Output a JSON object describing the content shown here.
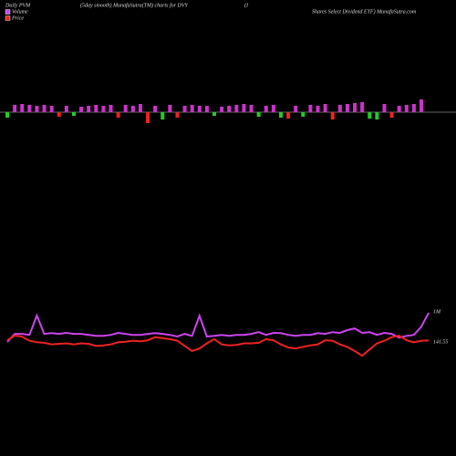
{
  "chart_data": {
    "type": "pvm",
    "title": "Daily PVM",
    "subtitle": "(5day smooth) MunafaSutra(TM) charts for DVY",
    "title_part": "(I",
    "title_right": "Shares Select Dividend ETF) MunafaSutra.com",
    "bars": {
      "values": [
        -6,
        8,
        9,
        8,
        7,
        8,
        7,
        -5,
        7,
        -4,
        6,
        7,
        8,
        7,
        8,
        -6,
        8,
        7,
        9,
        -12,
        7,
        -8,
        8,
        -6,
        7,
        8,
        7,
        7,
        -4,
        6,
        7,
        8,
        9,
        8,
        -5,
        7,
        8,
        -6,
        -7,
        7,
        -5,
        8,
        7,
        9,
        -8,
        8,
        9,
        10,
        11,
        -7,
        -8,
        9,
        -6,
        7,
        8,
        9,
        14
      ],
      "colors": [
        "#22cc22",
        "#cc33cc",
        "#cc33cc",
        "#cc33cc",
        "#cc33cc",
        "#cc33cc",
        "#cc33cc",
        "#ee2222",
        "#cc33cc",
        "#22cc22",
        "#cc33cc",
        "#cc33cc",
        "#cc33cc",
        "#cc33cc",
        "#cc33cc",
        "#ee2222",
        "#cc33cc",
        "#cc33cc",
        "#cc33cc",
        "#ee2222",
        "#cc33cc",
        "#22cc22",
        "#cc33cc",
        "#ee2222",
        "#cc33cc",
        "#cc33cc",
        "#cc33cc",
        "#cc33cc",
        "#22cc22",
        "#cc33cc",
        "#cc33cc",
        "#cc33cc",
        "#cc33cc",
        "#cc33cc",
        "#22cc22",
        "#cc33cc",
        "#cc33cc",
        "#22cc22",
        "#ee2222",
        "#cc33cc",
        "#22cc22",
        "#cc33cc",
        "#cc33cc",
        "#cc33cc",
        "#ee2222",
        "#cc33cc",
        "#cc33cc",
        "#cc33cc",
        "#cc33cc",
        "#22cc22",
        "#22cc22",
        "#cc33cc",
        "#ee2222",
        "#cc33cc",
        "#cc33cc",
        "#cc33cc",
        "#cc33cc"
      ]
    },
    "series": [
      {
        "name": "Volume",
        "color": "#cc44ee",
        "values": [
          0.14,
          0.38,
          0.38,
          0.35,
          0.92,
          0.38,
          0.4,
          0.38,
          0.41,
          0.38,
          0.38,
          0.35,
          0.32,
          0.32,
          0.35,
          0.41,
          0.38,
          0.35,
          0.35,
          0.38,
          0.4,
          0.38,
          0.35,
          0.3,
          0.38,
          0.32,
          0.91,
          0.3,
          0.32,
          0.35,
          0.32,
          0.35,
          0.35,
          0.38,
          0.43,
          0.35,
          0.41,
          0.4,
          0.35,
          0.32,
          0.35,
          0.35,
          0.4,
          0.38,
          0.43,
          0.41,
          0.49,
          0.54,
          0.41,
          0.43,
          0.35,
          0.41,
          0.38,
          0.27,
          0.32,
          0.35,
          0.59,
          1.0
        ]
      },
      {
        "name": "Price",
        "color": "#ee2222",
        "values": [
          141.6,
          142.5,
          142.3,
          141.5,
          141.2,
          141.1,
          140.8,
          140.9,
          141.0,
          140.8,
          141.0,
          140.9,
          140.5,
          140.6,
          140.8,
          141.2,
          141.3,
          141.5,
          141.4,
          141.6,
          142.2,
          142.0,
          141.8,
          141.5,
          140.5,
          139.5,
          140.0,
          141.0,
          141.8,
          140.8,
          140.6,
          140.7,
          141.0,
          141.0,
          141.1,
          141.8,
          141.6,
          140.8,
          140.2,
          140.0,
          140.3,
          140.6,
          140.8,
          141.6,
          141.5,
          140.8,
          140.3,
          139.5,
          138.6,
          139.8,
          141.0,
          141.5,
          142.2,
          142.5,
          141.6,
          141.2,
          141.5,
          141.55
        ]
      }
    ],
    "annotations": [
      "1M",
      "141.55"
    ]
  }
}
